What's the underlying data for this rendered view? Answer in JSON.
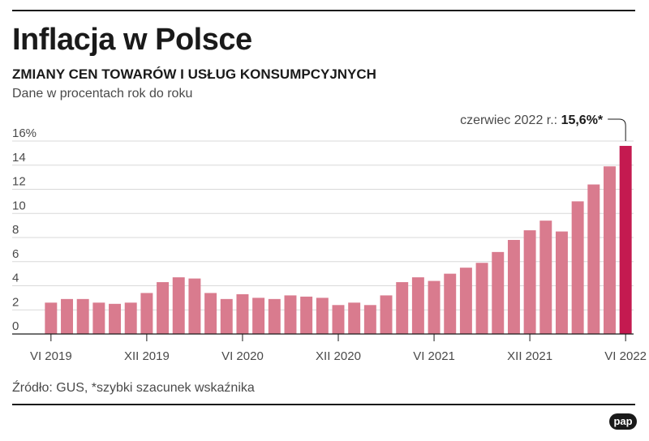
{
  "header": {
    "title": "Inflacja w Polsce",
    "subtitle": "ZMIANY CEN TOWARÓW I USŁUG KONSUMPCYJNYCH",
    "units": "Dane w procentach rok do roku"
  },
  "footer": {
    "source": "Źródło: GUS, *szybki szacunek wskaźnika",
    "logo": "pap"
  },
  "colors": {
    "bar": "#d97b8e",
    "highlight_bar": "#c41a50"
  },
  "chart_data": {
    "type": "bar",
    "title": "Inflacja w Polsce",
    "subtitle": "ZMIANY CEN TOWARÓW I USŁUG KONSUMPCYJNYCH",
    "ylabel": "Dane w procentach rok do roku",
    "ylim": [
      0,
      16
    ],
    "y_ticks": [
      0,
      2,
      4,
      6,
      8,
      10,
      12,
      14,
      16
    ],
    "y_tick_labels": [
      "0",
      "2",
      "4",
      "6",
      "8",
      "10",
      "12",
      "14",
      "16%"
    ],
    "grid": true,
    "categories": [
      "VI 2019",
      "VII 2019",
      "VIII 2019",
      "IX 2019",
      "X 2019",
      "XI 2019",
      "XII 2019",
      "I 2020",
      "II 2020",
      "III 2020",
      "IV 2020",
      "V 2020",
      "VI 2020",
      "VII 2020",
      "VIII 2020",
      "IX 2020",
      "X 2020",
      "XI 2020",
      "XII 2020",
      "I 2021",
      "II 2021",
      "III 2021",
      "IV 2021",
      "V 2021",
      "VI 2021",
      "VII 2021",
      "VIII 2021",
      "IX 2021",
      "X 2021",
      "XI 2021",
      "XII 2021",
      "I 2022",
      "II 2022",
      "III 2022",
      "IV 2022",
      "V 2022",
      "VI 2022"
    ],
    "x_tick_labels": [
      {
        "index": 0,
        "label": "VI 2019"
      },
      {
        "index": 6,
        "label": "XII 2019"
      },
      {
        "index": 12,
        "label": "VI 2020"
      },
      {
        "index": 18,
        "label": "XII 2020"
      },
      {
        "index": 24,
        "label": "VI 2021"
      },
      {
        "index": 30,
        "label": "XII 2021"
      },
      {
        "index": 36,
        "label": "VI 2022"
      }
    ],
    "values": [
      2.6,
      2.9,
      2.9,
      2.6,
      2.5,
      2.6,
      3.4,
      4.3,
      4.7,
      4.6,
      3.4,
      2.9,
      3.3,
      3.0,
      2.9,
      3.2,
      3.1,
      3.0,
      2.4,
      2.6,
      2.4,
      3.2,
      4.3,
      4.7,
      4.4,
      5.0,
      5.5,
      5.9,
      6.8,
      7.8,
      8.6,
      9.4,
      8.5,
      11.0,
      12.4,
      13.9,
      15.6
    ],
    "highlight_index": 36,
    "annotation": {
      "label": "czerwiec 2022 r.: ",
      "value": "15,6%*"
    }
  }
}
